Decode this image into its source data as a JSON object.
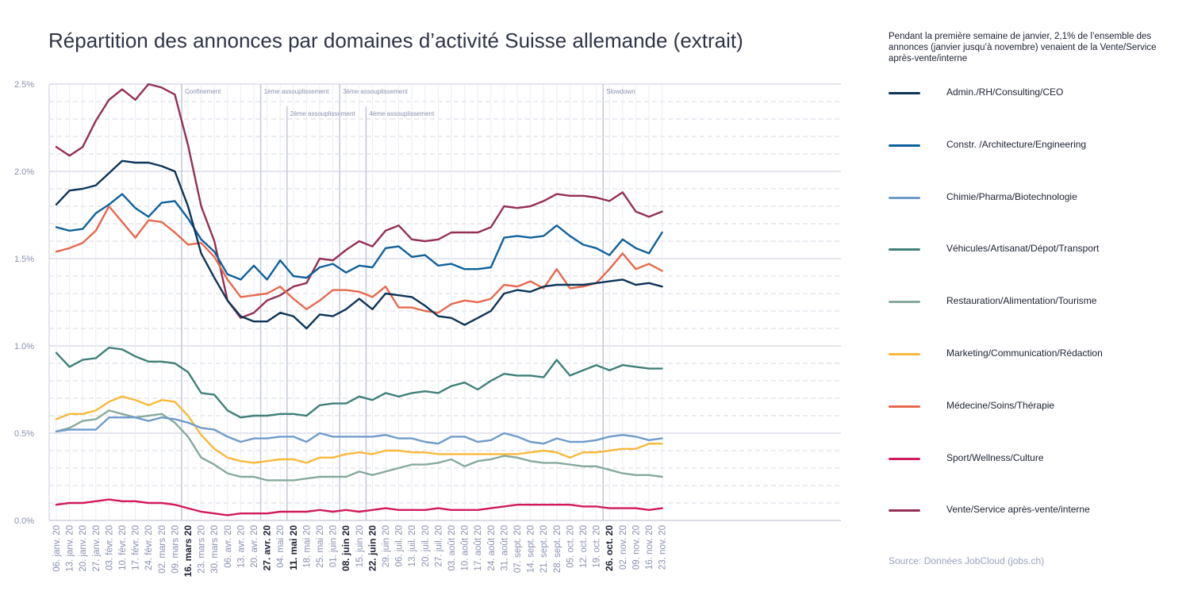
{
  "title": "Répartition des annonces par domaines d’activité Suisse allemande (extrait)",
  "note": "Pendant la première semaine de janvier, 2,1% de l’ensemble des annonces (janvier jusqu’à novembre) venaient de la Vente/Service après-vente/interne",
  "source": "Source: Données JobCloud (jobs.ch)",
  "chart_data": {
    "type": "line",
    "title": "Répartition des annonces par domaines d’activité Suisse allemande (extrait)",
    "xlabel": "",
    "ylabel": "",
    "ylim": [
      0,
      2.5
    ],
    "y_ticks": [
      "0.0%",
      "0.5%",
      "1.0%",
      "1.5%",
      "2.0%",
      "2.5%"
    ],
    "y_tick_values": [
      0,
      0.5,
      1.0,
      1.5,
      2.0,
      2.5
    ],
    "grid": true,
    "legend_position": "right",
    "x": [
      "06. janv. 20",
      "13. janv. 20",
      "20. janv. 20",
      "27. janv. 20",
      "03. févr. 20",
      "10. févr. 20",
      "17. févr. 20",
      "24. févr. 20",
      "02. mars 20",
      "09. mars 20",
      "16. mars 20",
      "23. mars 20",
      "30. mars 20",
      "06. avr. 20",
      "13. avr. 20",
      "20. avr. 20",
      "27. avr. 20",
      "04. mai 20",
      "11. mai 20",
      "18. mai 20",
      "25. mai 20",
      "01. juin 20",
      "08. juin 20",
      "15. juin 20",
      "22. juin 20",
      "29. juin 20",
      "06. juil. 20",
      "13. juil. 20",
      "20. juil. 20",
      "27. juil. 20",
      "03. août 20",
      "10. août 20",
      "17. août 20",
      "24. août 20",
      "31. août 20",
      "07. sept. 20",
      "14. sept. 20",
      "21. sept. 20",
      "28. sept. 20",
      "05. oct. 20",
      "12. oct. 20",
      "19. oct. 20",
      "26. oct. 20",
      "02. nov. 20",
      "09. nov. 20",
      "16. nov. 20",
      "23. nov. 20"
    ],
    "bold_x_labels": [
      "16. mars 20",
      "27. avr. 20",
      "11. mai 20",
      "08. juin 20",
      "22. juin 20",
      "26. oct. 20"
    ],
    "annotations": [
      {
        "x": "16. mars 20",
        "label": "Confinement",
        "level": 1
      },
      {
        "x": "27. avr. 20",
        "label": "1ème assouplissement",
        "level": 1
      },
      {
        "x": "11. mai 20",
        "label": "2ème assouplissement",
        "level": 2
      },
      {
        "x": "08. juin 20",
        "label": "3ème assouplissement",
        "level": 1
      },
      {
        "x": "22. juin 20",
        "label": "4ème assouplissement",
        "level": 2
      },
      {
        "x": "26. oct. 20",
        "label": "Slowdown",
        "level": 1
      }
    ],
    "series": [
      {
        "name": "Admin./RH/Consulting/CEO",
        "color": "#0d3458",
        "values": [
          1.81,
          1.89,
          1.9,
          1.92,
          1.99,
          2.06,
          2.05,
          2.05,
          2.03,
          2.0,
          1.8,
          1.53,
          1.39,
          1.26,
          1.17,
          1.14,
          1.14,
          1.19,
          1.17,
          1.1,
          1.18,
          1.17,
          1.21,
          1.27,
          1.21,
          1.3,
          1.29,
          1.28,
          1.23,
          1.17,
          1.16,
          1.12,
          1.16,
          1.2,
          1.3,
          1.32,
          1.31,
          1.34,
          1.35,
          1.35,
          1.35,
          1.36,
          1.37,
          1.38,
          1.35,
          1.36,
          1.34
        ]
      },
      {
        "name": "Constr. /Architecture/Engineering",
        "color": "#0f619b",
        "values": [
          1.68,
          1.66,
          1.67,
          1.76,
          1.81,
          1.87,
          1.79,
          1.74,
          1.82,
          1.83,
          1.73,
          1.61,
          1.54,
          1.41,
          1.38,
          1.46,
          1.38,
          1.49,
          1.4,
          1.39,
          1.45,
          1.47,
          1.42,
          1.46,
          1.45,
          1.56,
          1.57,
          1.51,
          1.52,
          1.46,
          1.47,
          1.44,
          1.44,
          1.45,
          1.62,
          1.63,
          1.62,
          1.63,
          1.69,
          1.63,
          1.58,
          1.56,
          1.52,
          1.61,
          1.56,
          1.53,
          1.65
        ]
      },
      {
        "name": "Chimie/Pharma/Biotechnologie",
        "color": "#6f9bcb",
        "values": [
          0.51,
          0.52,
          0.52,
          0.52,
          0.59,
          0.59,
          0.59,
          0.57,
          0.59,
          0.58,
          0.56,
          0.53,
          0.52,
          0.48,
          0.45,
          0.47,
          0.47,
          0.48,
          0.48,
          0.45,
          0.5,
          0.48,
          0.48,
          0.48,
          0.48,
          0.49,
          0.47,
          0.47,
          0.45,
          0.44,
          0.48,
          0.48,
          0.45,
          0.46,
          0.5,
          0.48,
          0.45,
          0.44,
          0.47,
          0.45,
          0.45,
          0.46,
          0.48,
          0.49,
          0.48,
          0.46,
          0.47
        ]
      },
      {
        "name": "Véhicules/Artisanat/Dépot/Transport",
        "color": "#3f8079",
        "values": [
          0.96,
          0.88,
          0.92,
          0.93,
          0.99,
          0.98,
          0.94,
          0.91,
          0.91,
          0.9,
          0.85,
          0.73,
          0.72,
          0.63,
          0.59,
          0.6,
          0.6,
          0.61,
          0.61,
          0.6,
          0.66,
          0.67,
          0.67,
          0.71,
          0.69,
          0.73,
          0.71,
          0.73,
          0.74,
          0.73,
          0.77,
          0.79,
          0.75,
          0.8,
          0.84,
          0.83,
          0.83,
          0.82,
          0.92,
          0.83,
          0.86,
          0.89,
          0.86,
          0.89,
          0.88,
          0.87,
          0.87
        ]
      },
      {
        "name": "Restauration/Alimentation/Tourisme",
        "color": "#86aa9c",
        "values": [
          0.51,
          0.53,
          0.57,
          0.58,
          0.63,
          0.61,
          0.59,
          0.6,
          0.61,
          0.56,
          0.48,
          0.36,
          0.32,
          0.27,
          0.25,
          0.25,
          0.23,
          0.23,
          0.23,
          0.24,
          0.25,
          0.25,
          0.25,
          0.28,
          0.26,
          0.28,
          0.3,
          0.32,
          0.32,
          0.33,
          0.35,
          0.31,
          0.34,
          0.35,
          0.37,
          0.36,
          0.34,
          0.33,
          0.33,
          0.32,
          0.31,
          0.31,
          0.29,
          0.27,
          0.26,
          0.26,
          0.25
        ]
      },
      {
        "name": "Marketing/Communication/Rédaction",
        "color": "#f9b93b",
        "values": [
          0.58,
          0.61,
          0.61,
          0.63,
          0.68,
          0.71,
          0.69,
          0.66,
          0.69,
          0.68,
          0.6,
          0.49,
          0.41,
          0.36,
          0.34,
          0.33,
          0.34,
          0.35,
          0.35,
          0.33,
          0.36,
          0.36,
          0.38,
          0.39,
          0.38,
          0.4,
          0.4,
          0.39,
          0.39,
          0.38,
          0.38,
          0.38,
          0.38,
          0.38,
          0.38,
          0.38,
          0.39,
          0.4,
          0.39,
          0.36,
          0.39,
          0.39,
          0.4,
          0.41,
          0.41,
          0.44,
          0.44
        ]
      },
      {
        "name": "Médecine/Soins/Thérapie",
        "color": "#e76a4e",
        "values": [
          1.54,
          1.56,
          1.59,
          1.66,
          1.8,
          1.71,
          1.62,
          1.72,
          1.71,
          1.65,
          1.58,
          1.59,
          1.51,
          1.38,
          1.28,
          1.29,
          1.3,
          1.34,
          1.27,
          1.21,
          1.26,
          1.32,
          1.32,
          1.31,
          1.28,
          1.34,
          1.22,
          1.22,
          1.2,
          1.19,
          1.24,
          1.26,
          1.25,
          1.27,
          1.35,
          1.34,
          1.37,
          1.33,
          1.44,
          1.33,
          1.34,
          1.36,
          1.44,
          1.53,
          1.44,
          1.47,
          1.43
        ]
      },
      {
        "name": "Sport/Wellness/Culture",
        "color": "#d01a5d",
        "values": [
          0.09,
          0.1,
          0.1,
          0.11,
          0.12,
          0.11,
          0.11,
          0.1,
          0.1,
          0.09,
          0.07,
          0.05,
          0.04,
          0.03,
          0.04,
          0.04,
          0.04,
          0.05,
          0.05,
          0.05,
          0.06,
          0.05,
          0.06,
          0.05,
          0.06,
          0.07,
          0.06,
          0.06,
          0.06,
          0.07,
          0.06,
          0.06,
          0.06,
          0.07,
          0.08,
          0.09,
          0.09,
          0.09,
          0.09,
          0.09,
          0.08,
          0.08,
          0.07,
          0.07,
          0.07,
          0.06,
          0.07
        ]
      },
      {
        "name": "Vente/Service après-vente/interne",
        "color": "#942f56",
        "values": [
          2.14,
          2.09,
          2.14,
          2.29,
          2.41,
          2.47,
          2.41,
          2.5,
          2.48,
          2.44,
          2.15,
          1.8,
          1.6,
          1.26,
          1.16,
          1.19,
          1.26,
          1.29,
          1.34,
          1.36,
          1.5,
          1.49,
          1.55,
          1.6,
          1.57,
          1.66,
          1.69,
          1.61,
          1.6,
          1.61,
          1.65,
          1.65,
          1.65,
          1.68,
          1.8,
          1.79,
          1.8,
          1.83,
          1.87,
          1.86,
          1.86,
          1.85,
          1.83,
          1.88,
          1.77,
          1.74,
          1.77
        ]
      }
    ]
  }
}
